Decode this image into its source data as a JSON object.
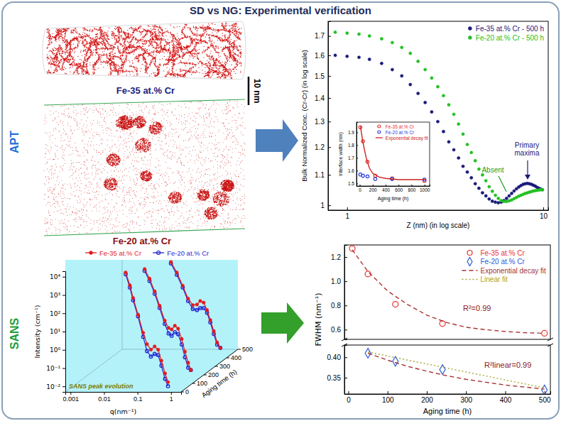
{
  "title": "SD vs NG: Experimental verification",
  "sections": [
    "APT",
    "SANS"
  ],
  "apt_images": [
    {
      "label": "Fe-35 at.% Cr"
    },
    {
      "label": "Fe-20 at.% Cr"
    }
  ],
  "scale_bar": "10 nm",
  "chart_data": [
    {
      "type": "line3d",
      "xlabel": "q(nm⁻¹)",
      "ylabel": "Intensity (cm⁻¹)",
      "zlabel": "Aging time (h)",
      "log": true,
      "xlim": [
        0.0007,
        2
      ],
      "xticks": [
        0.001,
        0.01,
        0.1,
        1
      ],
      "ylim": [
        0.005,
        20000
      ],
      "yticks": [
        {
          "value": 0.01,
          "label": "10⁻²"
        },
        {
          "value": 0.1,
          "label": "10⁻¹"
        },
        {
          "value": 1,
          "label": "10⁰"
        },
        {
          "value": 10,
          "label": "10¹"
        },
        {
          "value": 100,
          "label": "10²"
        },
        {
          "value": 1000,
          "label": "10³"
        },
        {
          "value": 10000,
          "label": "10⁴"
        }
      ],
      "zlim": [
        0,
        500
      ],
      "zticks": [
        0,
        100,
        200,
        300,
        400,
        500
      ],
      "legend": "top",
      "annotations": [
        {
          "text": "SANS peak evolution"
        }
      ],
      "series": [
        {
          "name": "Fe-35 at.% Cr",
          "color": "#e41a1c",
          "marker": "circle",
          "aging_time": 50,
          "x": [
            0.03,
            0.04,
            0.05,
            0.07,
            0.1,
            0.13,
            0.17,
            0.22,
            0.28,
            0.35,
            0.45,
            0.55
          ],
          "values": [
            10000,
            2000,
            400,
            50,
            5,
            1.2,
            0.6,
            0.9,
            0.6,
            0.15,
            0.03,
            0.01
          ]
        },
        {
          "name": "Fe-20 at.% Cr",
          "color": "#1f1fd0",
          "marker": "open-circle",
          "aging_time": 50,
          "x": [
            0.03,
            0.04,
            0.05,
            0.07,
            0.1,
            0.13,
            0.17,
            0.22,
            0.28,
            0.35,
            0.45,
            0.55
          ],
          "values": [
            8000,
            1500,
            300,
            40,
            3,
            0.5,
            0.25,
            0.35,
            0.3,
            0.08,
            0.015,
            0.006
          ]
        },
        {
          "name": "Fe-35 at.% Cr",
          "color": "#e41a1c",
          "marker": "circle",
          "aging_time": 240,
          "x": [
            0.025,
            0.035,
            0.05,
            0.07,
            0.1,
            0.13,
            0.16,
            0.2,
            0.25,
            0.32,
            0.4,
            0.5,
            0.6
          ],
          "values": [
            2000,
            600,
            120,
            20,
            3,
            1.2,
            1.0,
            1.6,
            1.1,
            0.3,
            0.06,
            0.015,
            0.006
          ]
        },
        {
          "name": "Fe-20 at.% Cr",
          "color": "#1f1fd0",
          "marker": "open-circle",
          "aging_time": 240,
          "x": [
            0.025,
            0.035,
            0.05,
            0.07,
            0.1,
            0.13,
            0.16,
            0.2,
            0.25,
            0.32,
            0.4,
            0.5,
            0.6
          ],
          "values": [
            1600,
            450,
            90,
            15,
            2,
            0.6,
            0.45,
            0.7,
            0.55,
            0.15,
            0.03,
            0.008,
            0.006
          ]
        },
        {
          "name": "Fe-35 at.% Cr",
          "color": "#e41a1c",
          "marker": "circle",
          "aging_time": 500,
          "x": [
            0.02,
            0.03,
            0.045,
            0.065,
            0.09,
            0.12,
            0.15,
            0.19,
            0.24,
            0.3,
            0.38,
            0.48,
            0.6
          ],
          "values": [
            300,
            80,
            15,
            3,
            1.3,
            1.4,
            2.2,
            1.8,
            0.7,
            0.2,
            0.05,
            0.012,
            0.006
          ]
        },
        {
          "name": "Fe-20 at.% Cr",
          "color": "#1f1fd0",
          "marker": "open-circle",
          "aging_time": 500,
          "x": [
            0.02,
            0.03,
            0.045,
            0.065,
            0.09,
            0.12,
            0.15,
            0.19,
            0.24,
            0.3,
            0.38,
            0.48,
            0.6
          ],
          "values": [
            250,
            60,
            12,
            2.2,
            0.8,
            0.7,
            0.9,
            0.9,
            0.5,
            0.15,
            0.035,
            0.009,
            0.006
          ]
        }
      ]
    },
    {
      "type": "scatter",
      "xlabel": "Z (nm) (in log scale)",
      "ylabel": "Bulk Normalized Conc. (Cr-Cr) (in log scale)",
      "log": true,
      "xlim": [
        0.8,
        10.6
      ],
      "xticks": [
        1,
        10
      ],
      "ylim": [
        0.985,
        1.78
      ],
      "yticks": [
        1,
        1.1,
        1.2,
        1.3,
        1.4,
        1.5,
        1.6,
        1.7
      ],
      "legend": "top-right",
      "annotations": [
        {
          "text": "Primary maxima",
          "color": "#1a1a7a"
        },
        {
          "text": "Absent",
          "color": "#1e9e1e"
        }
      ],
      "x": [
        0.87,
        1.0,
        1.15,
        1.3,
        1.5,
        1.7,
        1.9,
        2.1,
        2.3,
        2.5,
        2.7,
        2.9,
        3.1,
        3.3,
        3.5,
        3.7,
        3.9,
        4.1,
        4.3,
        4.5,
        4.7,
        4.9,
        5.1,
        5.3,
        5.5,
        5.7,
        5.9,
        6.1,
        6.3,
        6.5,
        6.7,
        6.9,
        7.1,
        7.3,
        7.5,
        7.7,
        7.9,
        8.1,
        8.3,
        8.5,
        8.7,
        8.9,
        9.1,
        9.3,
        9.5,
        9.7,
        9.9
      ],
      "series": [
        {
          "name": "Fe-35 at.% Cr - 500 h",
          "color": "#1a1a7a",
          "marker": "circle",
          "values": [
            1.6,
            1.595,
            1.59,
            1.58,
            1.56,
            1.53,
            1.5,
            1.46,
            1.42,
            1.38,
            1.34,
            1.3,
            1.26,
            1.22,
            1.19,
            1.16,
            1.13,
            1.11,
            1.09,
            1.07,
            1.055,
            1.04,
            1.03,
            1.02,
            1.013,
            1.01,
            1.008,
            1.01,
            1.015,
            1.022,
            1.03,
            1.038,
            1.046,
            1.053,
            1.059,
            1.064,
            1.068,
            1.07,
            1.071,
            1.07,
            1.068,
            1.065,
            1.062,
            1.058,
            1.055,
            1.052,
            1.05
          ]
        },
        {
          "name": "Fe-20 at.% Cr - 500 h",
          "color": "#22c022",
          "marker": "circle",
          "values": [
            1.72,
            1.715,
            1.71,
            1.7,
            1.685,
            1.665,
            1.64,
            1.61,
            1.57,
            1.53,
            1.49,
            1.45,
            1.41,
            1.37,
            1.33,
            1.29,
            1.25,
            1.21,
            1.18,
            1.15,
            1.12,
            1.1,
            1.08,
            1.06,
            1.045,
            1.032,
            1.022,
            1.015,
            1.012,
            1.012,
            1.014,
            1.017,
            1.021,
            1.025,
            1.029,
            1.032,
            1.035,
            1.038,
            1.04,
            1.042,
            1.044,
            1.046,
            1.047,
            1.048,
            1.049,
            1.05,
            1.05
          ]
        }
      ]
    },
    {
      "type": "scatter",
      "xlabel": "Aging time (h)",
      "ylabel": "Interface width (nm)",
      "xlim": [
        -50,
        1080
      ],
      "xticks": [
        0,
        200,
        400,
        600,
        800,
        1000
      ],
      "ylim": [
        1.48,
        1.98
      ],
      "yticks": [
        1.5,
        1.6,
        1.7,
        1.8,
        1.9
      ],
      "legend": "top-right",
      "series": [
        {
          "name": "Fe-35 at.% Cr",
          "color": "#e8322d",
          "marker": "open-circle",
          "x": [
            10,
            50,
            120,
            240,
            500,
            1000
          ],
          "values": [
            1.94,
            1.83,
            1.67,
            1.56,
            1.54,
            1.52
          ]
        },
        {
          "name": "Fe-20 at.% Cr",
          "color": "#2a3fd7",
          "marker": "open-circle",
          "x": [
            10,
            50,
            120,
            240,
            500,
            1000
          ],
          "values": [
            1.57,
            1.56,
            1.555,
            1.535,
            1.535,
            1.53
          ]
        },
        {
          "name": "Exponential decay fit",
          "color": "#cc2222",
          "type": "line",
          "line_style": "solid",
          "x": [
            10,
            50,
            100,
            150,
            200,
            300,
            400,
            600,
            800,
            1000
          ],
          "values": [
            1.95,
            1.82,
            1.7,
            1.62,
            1.58,
            1.55,
            1.54,
            1.53,
            1.53,
            1.53
          ]
        }
      ]
    },
    {
      "type": "scatter",
      "ylabel": "FWHM (nm⁻¹)",
      "xlim": [
        -10,
        515
      ],
      "ylim": [
        0.52,
        1.3
      ],
      "yticks": [
        0.6,
        0.8,
        {
          "value": 1,
          "label": "1.0"
        },
        1.2
      ],
      "tick_labels": "y",
      "legend": "top-right",
      "annotations": [
        {
          "text": "R²=0.99"
        }
      ],
      "series": [
        {
          "name": "Fe-35 at.% Cr",
          "color": "#e8322d",
          "marker": "open-circle",
          "x": [
            10,
            50,
            120,
            240,
            500
          ],
          "values": [
            1.27,
            1.06,
            0.81,
            0.65,
            0.57
          ]
        },
        {
          "name": "Exponential decay fit",
          "color": "#a83232",
          "type": "line",
          "line_style": "dashed",
          "x": [
            10,
            50,
            100,
            150,
            200,
            250,
            300,
            350,
            400,
            450,
            500
          ],
          "values": [
            1.26,
            1.08,
            0.92,
            0.81,
            0.72,
            0.66,
            0.62,
            0.6,
            0.585,
            0.575,
            0.57
          ]
        }
      ]
    },
    {
      "type": "scatter",
      "xlabel": "Aging time (h)",
      "xlim": [
        -10,
        515
      ],
      "xticks": [
        0,
        100,
        200,
        300,
        400,
        500
      ],
      "ylim": [
        0.31,
        0.43
      ],
      "yticks": [
        0.35,
        {
          "value": 0.4,
          "label": "0.40"
        }
      ],
      "annotations": [
        {
          "text": "R²linear=0.99"
        }
      ],
      "series": [
        {
          "name": "Fe-20 at.% Cr",
          "color": "#2a5bd7",
          "marker": "open-diamond",
          "x": [
            50,
            120,
            240,
            500
          ],
          "values": [
            0.41,
            0.39,
            0.37,
            0.32
          ]
        },
        {
          "name": "Exponential decay fit",
          "color": "#a83232",
          "type": "line",
          "line_style": "dashed",
          "x": [
            50,
            100,
            150,
            200,
            250,
            300,
            350,
            400,
            450,
            500
          ],
          "values": [
            0.41,
            0.393,
            0.378,
            0.366,
            0.355,
            0.346,
            0.339,
            0.332,
            0.327,
            0.322
          ]
        },
        {
          "name": "Linear fit",
          "color": "#a6a22a",
          "type": "line",
          "line_style": "dotted",
          "x": [
            50,
            500
          ],
          "values": [
            0.413,
            0.325
          ]
        }
      ]
    }
  ]
}
